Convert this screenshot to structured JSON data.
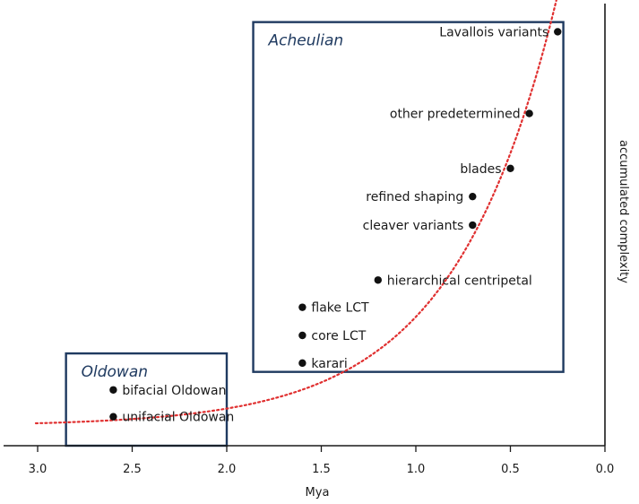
{
  "chart_data": {
    "type": "scatter",
    "xlabel": "Mya",
    "ylabel": "accumulated complexity",
    "x_reversed": true,
    "xlim": [
      3.0,
      0.0
    ],
    "ylim": [
      0,
      100
    ],
    "x_ticks": [
      "3.0",
      "2.5",
      "2.0",
      "1.5",
      "1.0",
      "0.5",
      "0.0"
    ],
    "x_tick_values": [
      3.0,
      2.5,
      2.0,
      1.5,
      1.0,
      0.5,
      0.0
    ],
    "points": [
      {
        "label": "unifacial Oldowan",
        "x": 2.6,
        "y": 6.6
      },
      {
        "label": "bifacial Oldowan",
        "x": 2.6,
        "y": 12.7
      },
      {
        "label": "karari",
        "x": 1.6,
        "y": 18.8
      },
      {
        "label": "core LCT",
        "x": 1.6,
        "y": 25.1
      },
      {
        "label": "flake LCT",
        "x": 1.6,
        "y": 31.5
      },
      {
        "label": "hierarchical centripetal",
        "x": 1.2,
        "y": 37.7
      },
      {
        "label": "cleaver variants",
        "x": 0.7,
        "y": 50.2
      },
      {
        "label": "refined shaping",
        "x": 0.7,
        "y": 56.7
      },
      {
        "label": "blades",
        "x": 0.5,
        "y": 63.1
      },
      {
        "label": "other predetermined",
        "x": 0.4,
        "y": 75.6
      },
      {
        "label": "Lavallois variants",
        "x": 0.25,
        "y": 94.2
      }
    ],
    "trend_line": {
      "style": "dotted",
      "color": "#e03030"
    },
    "groups": [
      {
        "label": "Oldowan",
        "x_range": [
          2.0,
          2.85
        ],
        "y_range": [
          0,
          21.0
        ],
        "color": "#1f3a60",
        "label_color": "#1f3a60"
      },
      {
        "label": "Acheulian",
        "x_range": [
          0.22,
          1.86
        ],
        "y_range": [
          16.8,
          96.4
        ],
        "color": "#1f3a60",
        "label_color": "#1f3a60"
      }
    ],
    "point_color": "#111111",
    "axis_color": "#1a1a1a"
  }
}
